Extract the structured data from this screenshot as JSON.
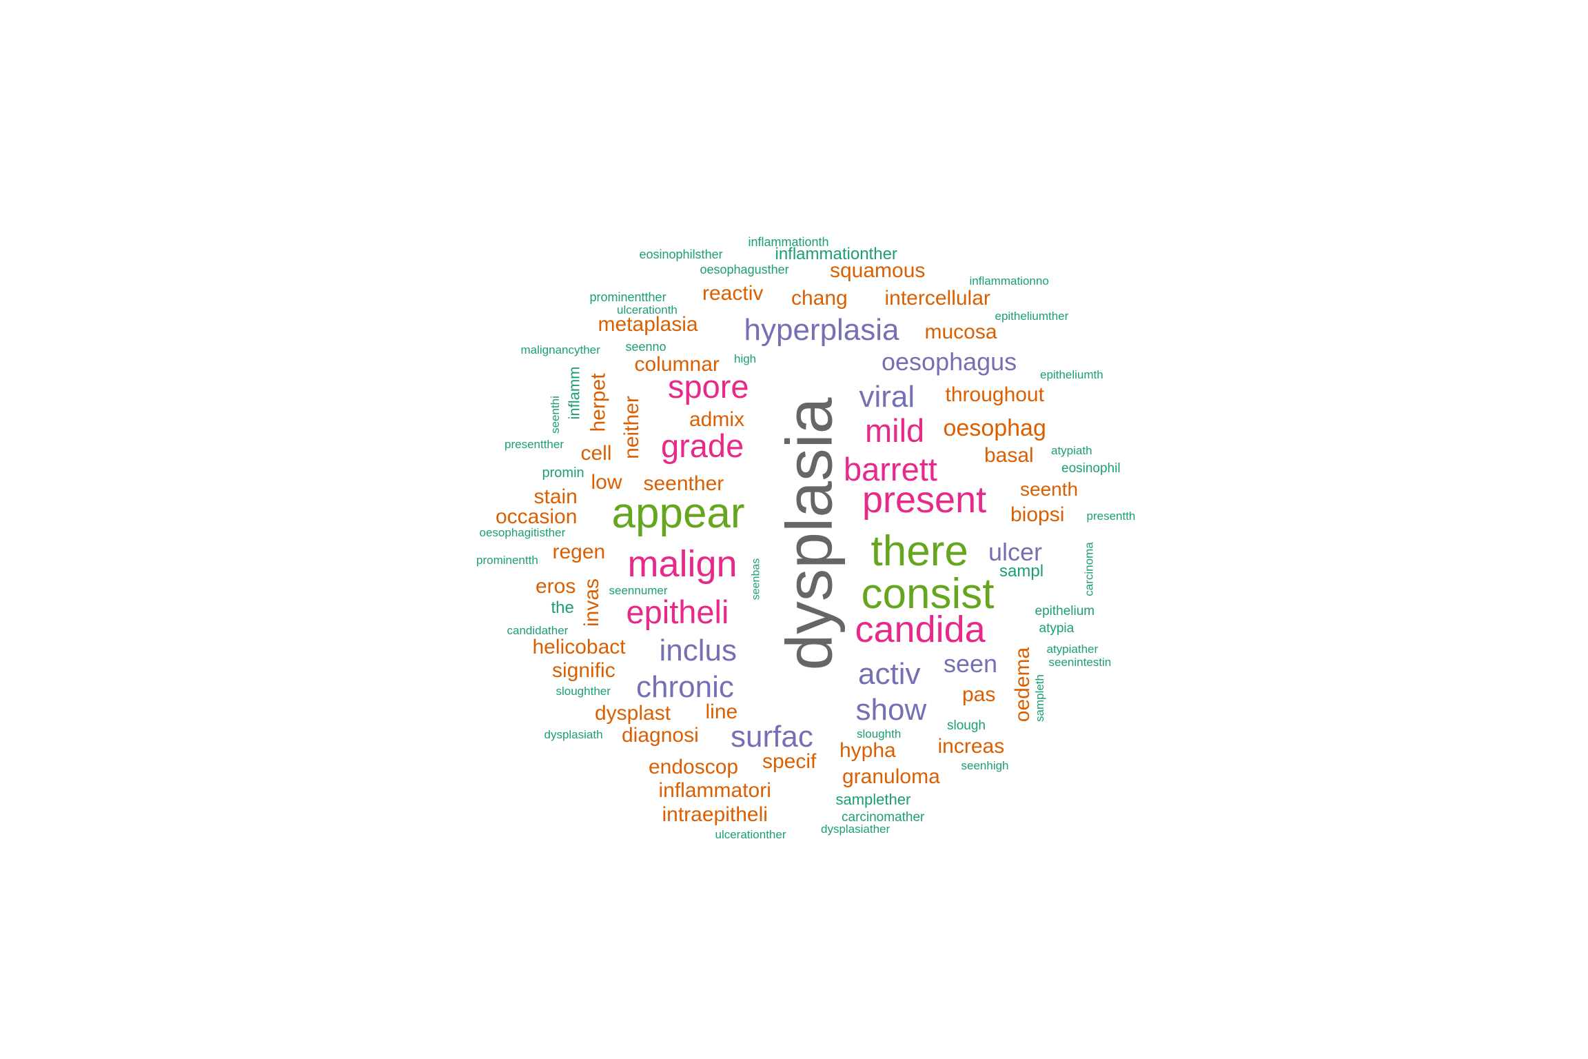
{
  "palette": {
    "gray": "#666666",
    "green": "#66a61e",
    "pink": "#e7298a",
    "purple": "#7570b3",
    "orange": "#d95f02",
    "teal": "#1b9e77"
  },
  "words": [
    {
      "text": "dysplasia",
      "color": "gray",
      "weight": 95
    },
    {
      "text": "appear",
      "color": "green",
      "weight": 62
    },
    {
      "text": "there",
      "color": "green",
      "weight": 62
    },
    {
      "text": "consist",
      "color": "green",
      "weight": 62
    },
    {
      "text": "present",
      "color": "pink",
      "weight": 54
    },
    {
      "text": "malign",
      "color": "pink",
      "weight": 54
    },
    {
      "text": "candida",
      "color": "pink",
      "weight": 54
    },
    {
      "text": "barrett",
      "color": "pink",
      "weight": 47
    },
    {
      "text": "spore",
      "color": "pink",
      "weight": 47
    },
    {
      "text": "grade",
      "color": "pink",
      "weight": 47
    },
    {
      "text": "mild",
      "color": "pink",
      "weight": 47
    },
    {
      "text": "epitheli",
      "color": "pink",
      "weight": 47
    },
    {
      "text": "hyperplasia",
      "color": "purple",
      "weight": 44
    },
    {
      "text": "viral",
      "color": "purple",
      "weight": 44
    },
    {
      "text": "chronic",
      "color": "purple",
      "weight": 44
    },
    {
      "text": "inclus",
      "color": "purple",
      "weight": 44
    },
    {
      "text": "show",
      "color": "purple",
      "weight": 44
    },
    {
      "text": "activ",
      "color": "purple",
      "weight": 44
    },
    {
      "text": "surfac",
      "color": "purple",
      "weight": 44
    },
    {
      "text": "oesophagus",
      "color": "purple",
      "weight": 36
    },
    {
      "text": "ulcer",
      "color": "purple",
      "weight": 36
    },
    {
      "text": "seen",
      "color": "purple",
      "weight": 36
    },
    {
      "text": "squamous",
      "color": "orange",
      "weight": 30
    },
    {
      "text": "reactiv",
      "color": "orange",
      "weight": 30
    },
    {
      "text": "chang",
      "color": "orange",
      "weight": 30
    },
    {
      "text": "intercellular",
      "color": "orange",
      "weight": 30
    },
    {
      "text": "metaplasia",
      "color": "orange",
      "weight": 30
    },
    {
      "text": "mucosa",
      "color": "orange",
      "weight": 30
    },
    {
      "text": "columnar",
      "color": "orange",
      "weight": 30
    },
    {
      "text": "throughout",
      "color": "orange",
      "weight": 30
    },
    {
      "text": "herpet",
      "color": "orange",
      "weight": 30
    },
    {
      "text": "neither",
      "color": "orange",
      "weight": 30
    },
    {
      "text": "admix",
      "color": "orange",
      "weight": 30
    },
    {
      "text": "oesophag",
      "color": "orange",
      "weight": 34
    },
    {
      "text": "cell",
      "color": "orange",
      "weight": 30
    },
    {
      "text": "basal",
      "color": "orange",
      "weight": 30
    },
    {
      "text": "low",
      "color": "orange",
      "weight": 30
    },
    {
      "text": "seenther",
      "color": "orange",
      "weight": 30
    },
    {
      "text": "stain",
      "color": "orange",
      "weight": 30
    },
    {
      "text": "seenth",
      "color": "orange",
      "weight": 28
    },
    {
      "text": "occasion",
      "color": "orange",
      "weight": 30
    },
    {
      "text": "biopsi",
      "color": "orange",
      "weight": 30
    },
    {
      "text": "regen",
      "color": "orange",
      "weight": 30
    },
    {
      "text": "eros",
      "color": "orange",
      "weight": 30
    },
    {
      "text": "invas",
      "color": "orange",
      "weight": 30
    },
    {
      "text": "helicobact",
      "color": "orange",
      "weight": 30
    },
    {
      "text": "signific",
      "color": "orange",
      "weight": 30
    },
    {
      "text": "oedema",
      "color": "orange",
      "weight": 30
    },
    {
      "text": "pas",
      "color": "orange",
      "weight": 30
    },
    {
      "text": "dysplast",
      "color": "orange",
      "weight": 30
    },
    {
      "text": "line",
      "color": "orange",
      "weight": 30
    },
    {
      "text": "diagnosi",
      "color": "orange",
      "weight": 30
    },
    {
      "text": "specif",
      "color": "orange",
      "weight": 30
    },
    {
      "text": "hypha",
      "color": "orange",
      "weight": 30
    },
    {
      "text": "increas",
      "color": "orange",
      "weight": 30
    },
    {
      "text": "endoscop",
      "color": "orange",
      "weight": 30
    },
    {
      "text": "granuloma",
      "color": "orange",
      "weight": 30
    },
    {
      "text": "inflammatori",
      "color": "orange",
      "weight": 30
    },
    {
      "text": "intraepitheli",
      "color": "orange",
      "weight": 30
    },
    {
      "text": "inflammationth",
      "color": "teal",
      "weight": 18
    },
    {
      "text": "eosinophilsther",
      "color": "teal",
      "weight": 18
    },
    {
      "text": "inflammationther",
      "color": "teal",
      "weight": 24
    },
    {
      "text": "oesophagusther",
      "color": "teal",
      "weight": 18
    },
    {
      "text": "inflammationno",
      "color": "teal",
      "weight": 17
    },
    {
      "text": "prominentther",
      "color": "teal",
      "weight": 18
    },
    {
      "text": "ulcerationth",
      "color": "teal",
      "weight": 17
    },
    {
      "text": "epitheliumther",
      "color": "teal",
      "weight": 17
    },
    {
      "text": "malignancyther",
      "color": "teal",
      "weight": 17
    },
    {
      "text": "seenno",
      "color": "teal",
      "weight": 18
    },
    {
      "text": "high",
      "color": "teal",
      "weight": 17
    },
    {
      "text": "epitheliumth",
      "color": "teal",
      "weight": 17
    },
    {
      "text": "seenthi",
      "color": "teal",
      "weight": 17
    },
    {
      "text": "inflamm",
      "color": "teal",
      "weight": 22
    },
    {
      "text": "presentther",
      "color": "teal",
      "weight": 17
    },
    {
      "text": "atypiath",
      "color": "teal",
      "weight": 17
    },
    {
      "text": "promin",
      "color": "teal",
      "weight": 20
    },
    {
      "text": "eosinophil",
      "color": "teal",
      "weight": 19
    },
    {
      "text": "oesophagitisther",
      "color": "teal",
      "weight": 17
    },
    {
      "text": "presentth",
      "color": "teal",
      "weight": 17
    },
    {
      "text": "carcinoma",
      "color": "teal",
      "weight": 17
    },
    {
      "text": "prominentth",
      "color": "teal",
      "weight": 17
    },
    {
      "text": "seenbas",
      "color": "teal",
      "weight": 16
    },
    {
      "text": "sampl",
      "color": "teal",
      "weight": 24
    },
    {
      "text": "seennumer",
      "color": "teal",
      "weight": 17
    },
    {
      "text": "the",
      "color": "teal",
      "weight": 24
    },
    {
      "text": "epithelium",
      "color": "teal",
      "weight": 19
    },
    {
      "text": "candidather",
      "color": "teal",
      "weight": 17
    },
    {
      "text": "atypia",
      "color": "teal",
      "weight": 19
    },
    {
      "text": "atypiather",
      "color": "teal",
      "weight": 17
    },
    {
      "text": "seenintestin",
      "color": "teal",
      "weight": 17
    },
    {
      "text": "sampleth",
      "color": "teal",
      "weight": 17
    },
    {
      "text": "sloughther",
      "color": "teal",
      "weight": 17
    },
    {
      "text": "dysplasiath",
      "color": "teal",
      "weight": 17
    },
    {
      "text": "slough",
      "color": "teal",
      "weight": 19
    },
    {
      "text": "sloughth",
      "color": "teal",
      "weight": 17
    },
    {
      "text": "seenhigh",
      "color": "teal",
      "weight": 17
    },
    {
      "text": "samplether",
      "color": "teal",
      "weight": 22
    },
    {
      "text": "carcinomather",
      "color": "teal",
      "weight": 19
    },
    {
      "text": "ulcerationther",
      "color": "teal",
      "weight": 17
    },
    {
      "text": "dysplasiather",
      "color": "teal",
      "weight": 17
    }
  ]
}
